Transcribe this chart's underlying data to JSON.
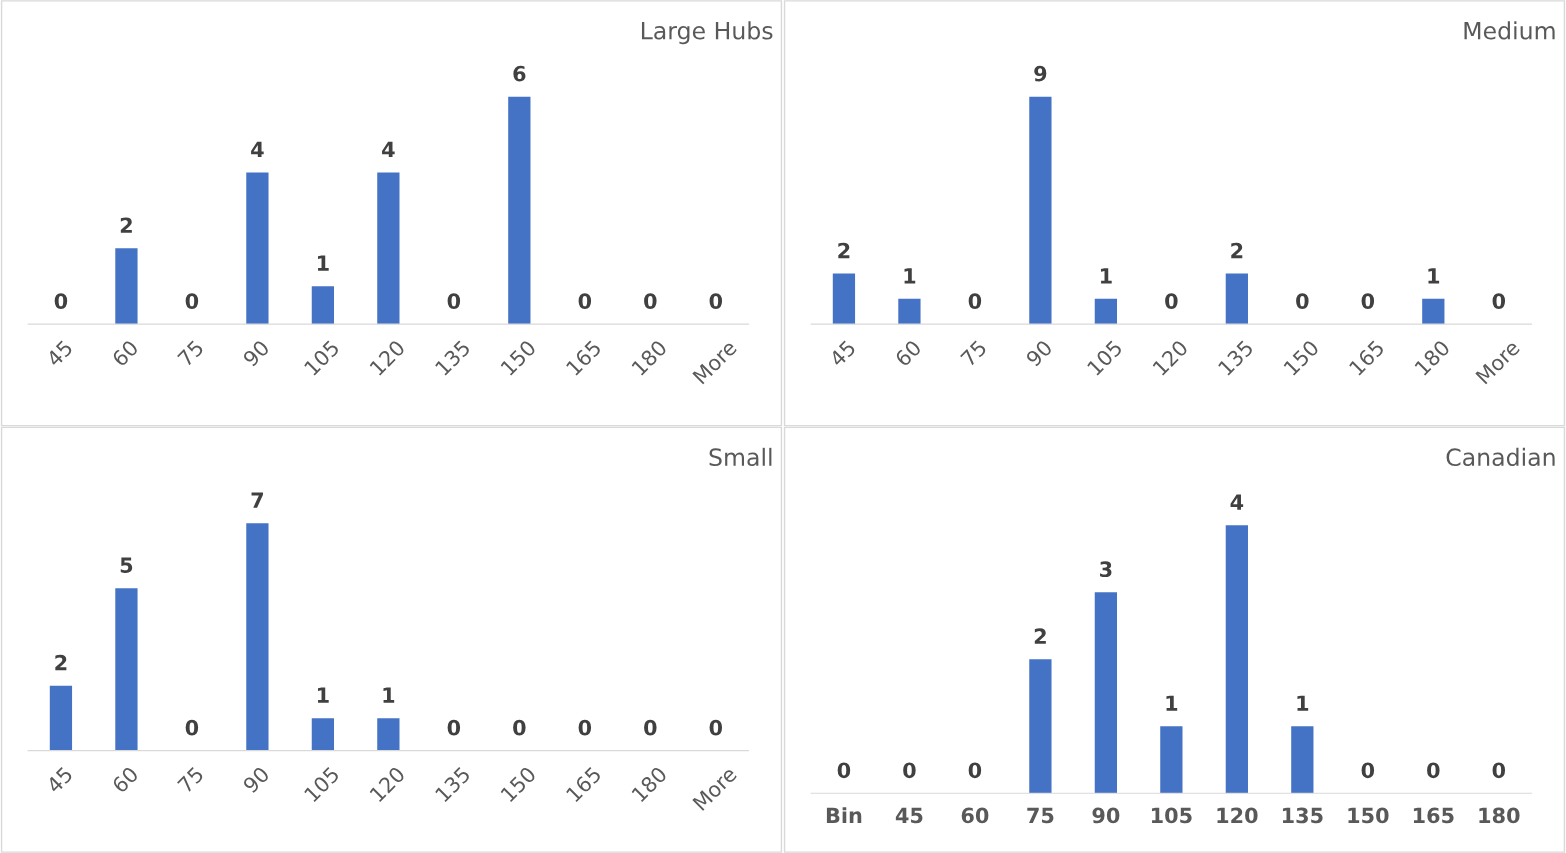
{
  "chart_data": [
    {
      "type": "bar",
      "title": "Large Hubs",
      "categories": [
        "45",
        "60",
        "75",
        "90",
        "105",
        "120",
        "135",
        "150",
        "165",
        "180",
        "More"
      ],
      "values": [
        0,
        2,
        0,
        4,
        1,
        4,
        0,
        6,
        0,
        0,
        0
      ],
      "color": "#4472c4",
      "data_labels": true
    },
    {
      "type": "bar",
      "title": "Medium",
      "categories": [
        "45",
        "60",
        "75",
        "90",
        "105",
        "120",
        "135",
        "150",
        "165",
        "180",
        "More"
      ],
      "values": [
        2,
        1,
        0,
        9,
        1,
        0,
        2,
        0,
        0,
        1,
        0
      ],
      "color": "#4472c4",
      "data_labels": true
    },
    {
      "type": "bar",
      "title": "Small",
      "categories": [
        "45",
        "60",
        "75",
        "90",
        "105",
        "120",
        "135",
        "150",
        "165",
        "180",
        "More"
      ],
      "values": [
        2,
        5,
        0,
        7,
        1,
        1,
        0,
        0,
        0,
        0,
        0
      ],
      "color": "#4472c4",
      "data_labels": true
    },
    {
      "type": "bar",
      "title": "Canadian",
      "categories": [
        "Bin",
        "45",
        "60",
        "75",
        "90",
        "105",
        "120",
        "135",
        "150",
        "165",
        "180"
      ],
      "values": [
        0,
        0,
        0,
        2,
        3,
        1,
        4,
        1,
        0,
        0,
        0
      ],
      "color": "#4472c4",
      "data_labels": true
    }
  ]
}
